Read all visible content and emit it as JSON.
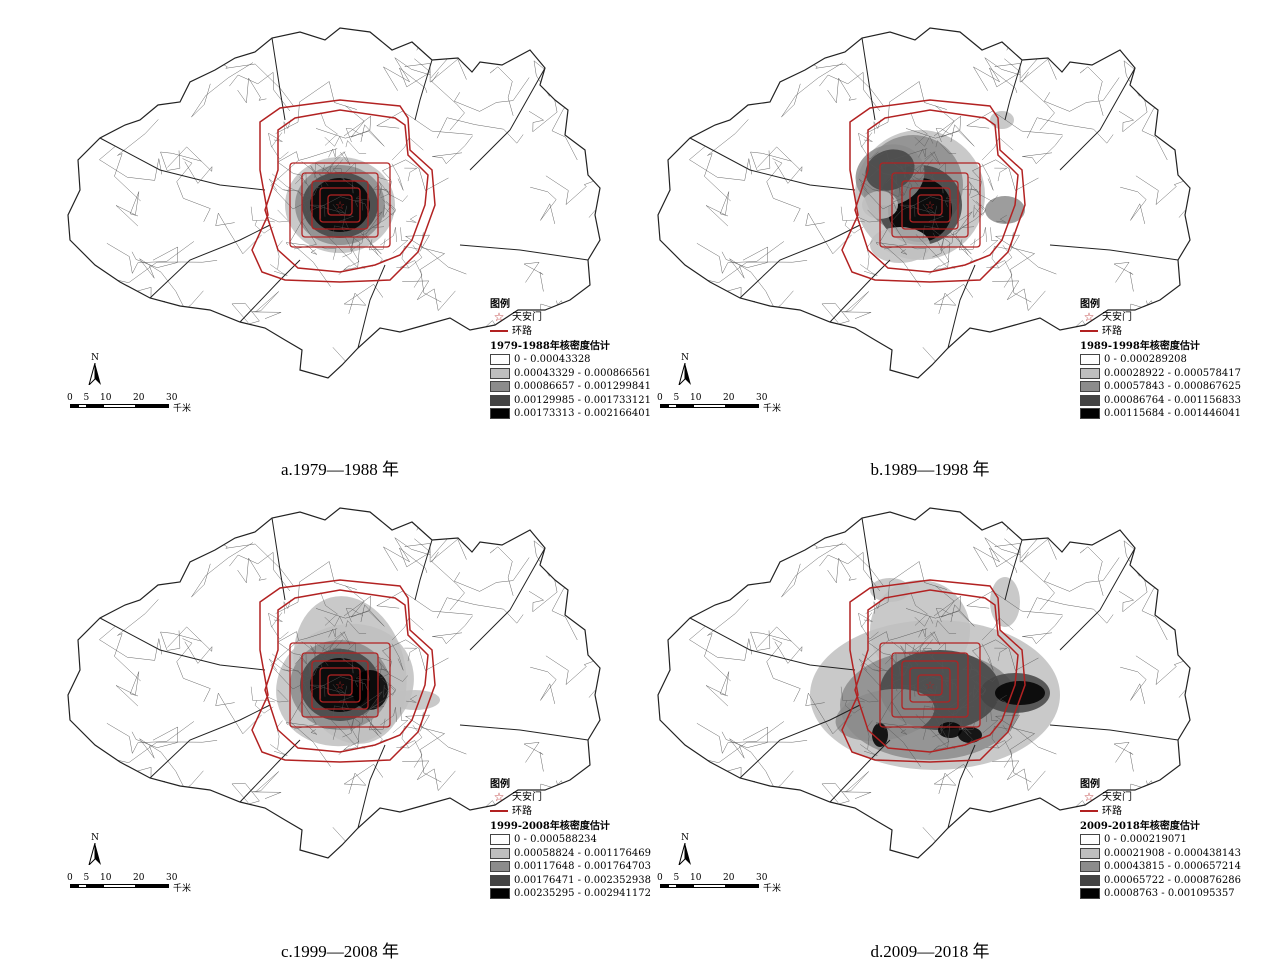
{
  "colors": {
    "ring_road": "#b22222",
    "boundary": "#222222",
    "district": "#555555",
    "class_1": "#ffffff",
    "class_2": "#bfbfbf",
    "class_3": "#8c8c8c",
    "class_4": "#444444",
    "class_5": "#000000"
  },
  "legend_common": {
    "title": "图例",
    "tiananmen": "天安门",
    "ring_road": "环路"
  },
  "scale": {
    "ticks": [
      "0",
      "5",
      "10",
      "20",
      "30"
    ],
    "unit": "千米",
    "north": "N"
  },
  "panels": [
    {
      "caption": "a.1979—1988 年",
      "kde_title": "1979-1988年核密度估计",
      "classes": [
        "0 - 0.00043328",
        "0.00043329 - 0.000866561",
        "0.00086657 - 0.001299841",
        "0.00129985 - 0.001733121",
        "0.00173313 - 0.002166401"
      ]
    },
    {
      "caption": "b.1989—1998 年",
      "kde_title": "1989-1998年核密度估计",
      "classes": [
        "0 - 0.000289208",
        "0.00028922 - 0.000578417",
        "0.00057843 - 0.000867625",
        "0.00086764 - 0.001156833",
        "0.00115684 - 0.001446041"
      ]
    },
    {
      "caption": "c.1999—2008 年",
      "kde_title": "1999-2008年核密度估计",
      "classes": [
        "0 - 0.000588234",
        "0.00058824 - 0.001176469",
        "0.00117648 - 0.001764703",
        "0.00176471 - 0.002352938",
        "0.00235295 - 0.002941172"
      ]
    },
    {
      "caption": "d.2009—2018 年",
      "kde_title": "2009-2018年核密度估计",
      "classes": [
        "0 - 0.000219071",
        "0.00021908 - 0.000438143",
        "0.00043815 - 0.000657214",
        "0.00065722 - 0.000876286",
        "0.0008763 - 0.001095357"
      ]
    }
  ]
}
